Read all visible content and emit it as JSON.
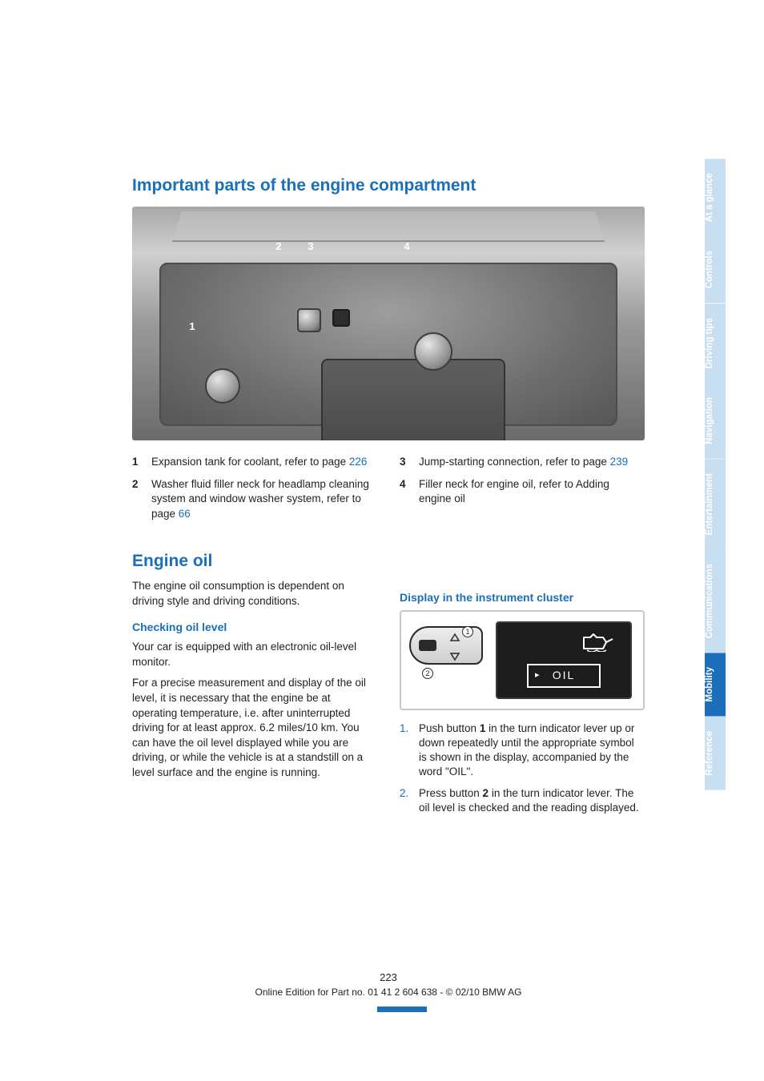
{
  "colors": {
    "accent": "#1a6fb8",
    "tab_inactive_bg": "#c8dff2",
    "tab_active_bg": "#1a6fb8",
    "text": "#231f20",
    "white": "#ffffff"
  },
  "headings": {
    "h1": "Important parts of the engine compartment",
    "h2": "Engine oil",
    "h3_checking": "Checking oil level",
    "h3_display": "Display in the instrument cluster"
  },
  "engine_callouts": {
    "left": [
      {
        "n": "1",
        "text_a": "Expansion tank for coolant, refer to page ",
        "link": "226"
      },
      {
        "n": "2",
        "text_a": "Washer fluid filler neck for headlamp cleaning system and window washer system, refer to page ",
        "link": "66"
      }
    ],
    "right": [
      {
        "n": "3",
        "text_a": "Jump-starting connection, refer to page ",
        "link": "239"
      },
      {
        "n": "4",
        "text_a": "Filler neck for engine oil, refer to Adding engine oil",
        "link": ""
      }
    ]
  },
  "engine_oil": {
    "intro": "The engine oil consumption is dependent on driving style and driving conditions.",
    "checking_p1": "Your car is equipped with an electronic oil-level monitor.",
    "checking_p2": "For a precise measurement and display of the oil level, it is necessary that the engine be at operating temperature, i.e. after uninterrupted driving for at least approx. 6.2 miles/10 km. You can have the oil level displayed while you are driving, or while the vehicle is at a standstill on a level surface and the engine is running."
  },
  "cluster": {
    "lcd_text": "OIL",
    "label1": "1",
    "label2": "2"
  },
  "display_steps": [
    {
      "n": "1.",
      "text": "Push button 1 in the turn indicator lever up or down repeatedly until the appropriate symbol is shown in the display, accompanied by the word \"OIL\"."
    },
    {
      "n": "2.",
      "text": "Press button 2 in the turn indicator lever. The oil level is checked and the reading displayed."
    }
  ],
  "tabs": [
    {
      "label": "At a glance",
      "active": false
    },
    {
      "label": "Controls",
      "active": false
    },
    {
      "label": "Driving tips",
      "active": false
    },
    {
      "label": "Navigation",
      "active": false
    },
    {
      "label": "Entertainment",
      "active": false
    },
    {
      "label": "Communications",
      "active": false
    },
    {
      "label": "Mobility",
      "active": true
    },
    {
      "label": "Reference",
      "active": false
    }
  ],
  "footer": {
    "page": "223",
    "line": "Online Edition for Part no. 01 41 2 604 638 - © 02/10 BMW AG"
  }
}
